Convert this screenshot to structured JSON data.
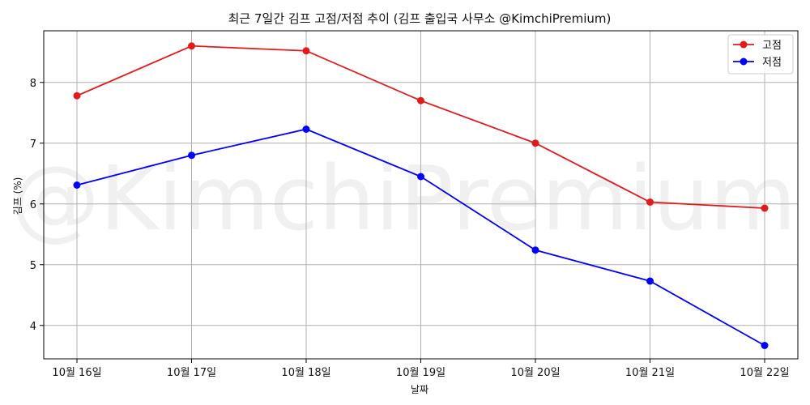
{
  "chart_data": {
    "type": "line",
    "title": "최근 7일간 김프 고점/저점 추이 (김프 출입국 사무소 @KimchiPremium)",
    "xlabel": "날짜",
    "ylabel": "김프 (%)",
    "categories": [
      "10월 16일",
      "10월 17일",
      "10월 18일",
      "10월 19일",
      "10월 20일",
      "10월 21일",
      "10월 22일"
    ],
    "series": [
      {
        "name": "고점",
        "color": "#e31a1c",
        "values": [
          7.78,
          8.6,
          8.52,
          7.7,
          7.0,
          6.03,
          5.93
        ]
      },
      {
        "name": "저점",
        "color": "#0000ff",
        "values": [
          6.31,
          6.8,
          7.23,
          6.45,
          5.24,
          4.73,
          3.67
        ]
      }
    ],
    "ylim": [
      3.45,
      8.85
    ],
    "yticks": [
      4,
      5,
      6,
      7,
      8
    ],
    "grid": true,
    "legend_position": "top-right",
    "watermark": "@KimchiPremium"
  }
}
